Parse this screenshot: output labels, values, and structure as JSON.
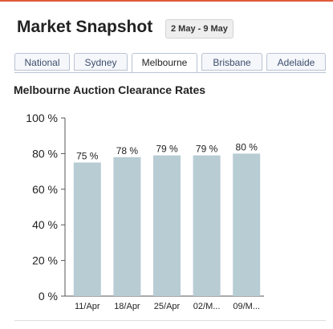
{
  "header": {
    "title": "Market Snapshot",
    "date_range": "2 May - 9 May"
  },
  "tabs": [
    {
      "label": "National",
      "active": false
    },
    {
      "label": "Sydney",
      "active": false
    },
    {
      "label": "Melbourne",
      "active": true
    },
    {
      "label": "Brisbane",
      "active": false
    },
    {
      "label": "Adelaide",
      "active": false
    }
  ],
  "colors": {
    "accent": "#e05a3a",
    "bar": "#b8ccd4",
    "axis": "#555555"
  },
  "chart_data": {
    "type": "bar",
    "title": "Melbourne Auction Clearance Rates",
    "categories": [
      "11/Apr",
      "18/Apr",
      "25/Apr",
      "02/M...",
      "09/M..."
    ],
    "values": [
      75,
      78,
      79,
      79,
      80
    ],
    "value_labels": [
      "75 %",
      "78 %",
      "79 %",
      "79 %",
      "80 %"
    ],
    "y_ticks": [
      "0 %",
      "20 %",
      "40 %",
      "60 %",
      "80 %",
      "100 %"
    ],
    "ylim": [
      0,
      100
    ],
    "grid": false,
    "legend": "none"
  }
}
